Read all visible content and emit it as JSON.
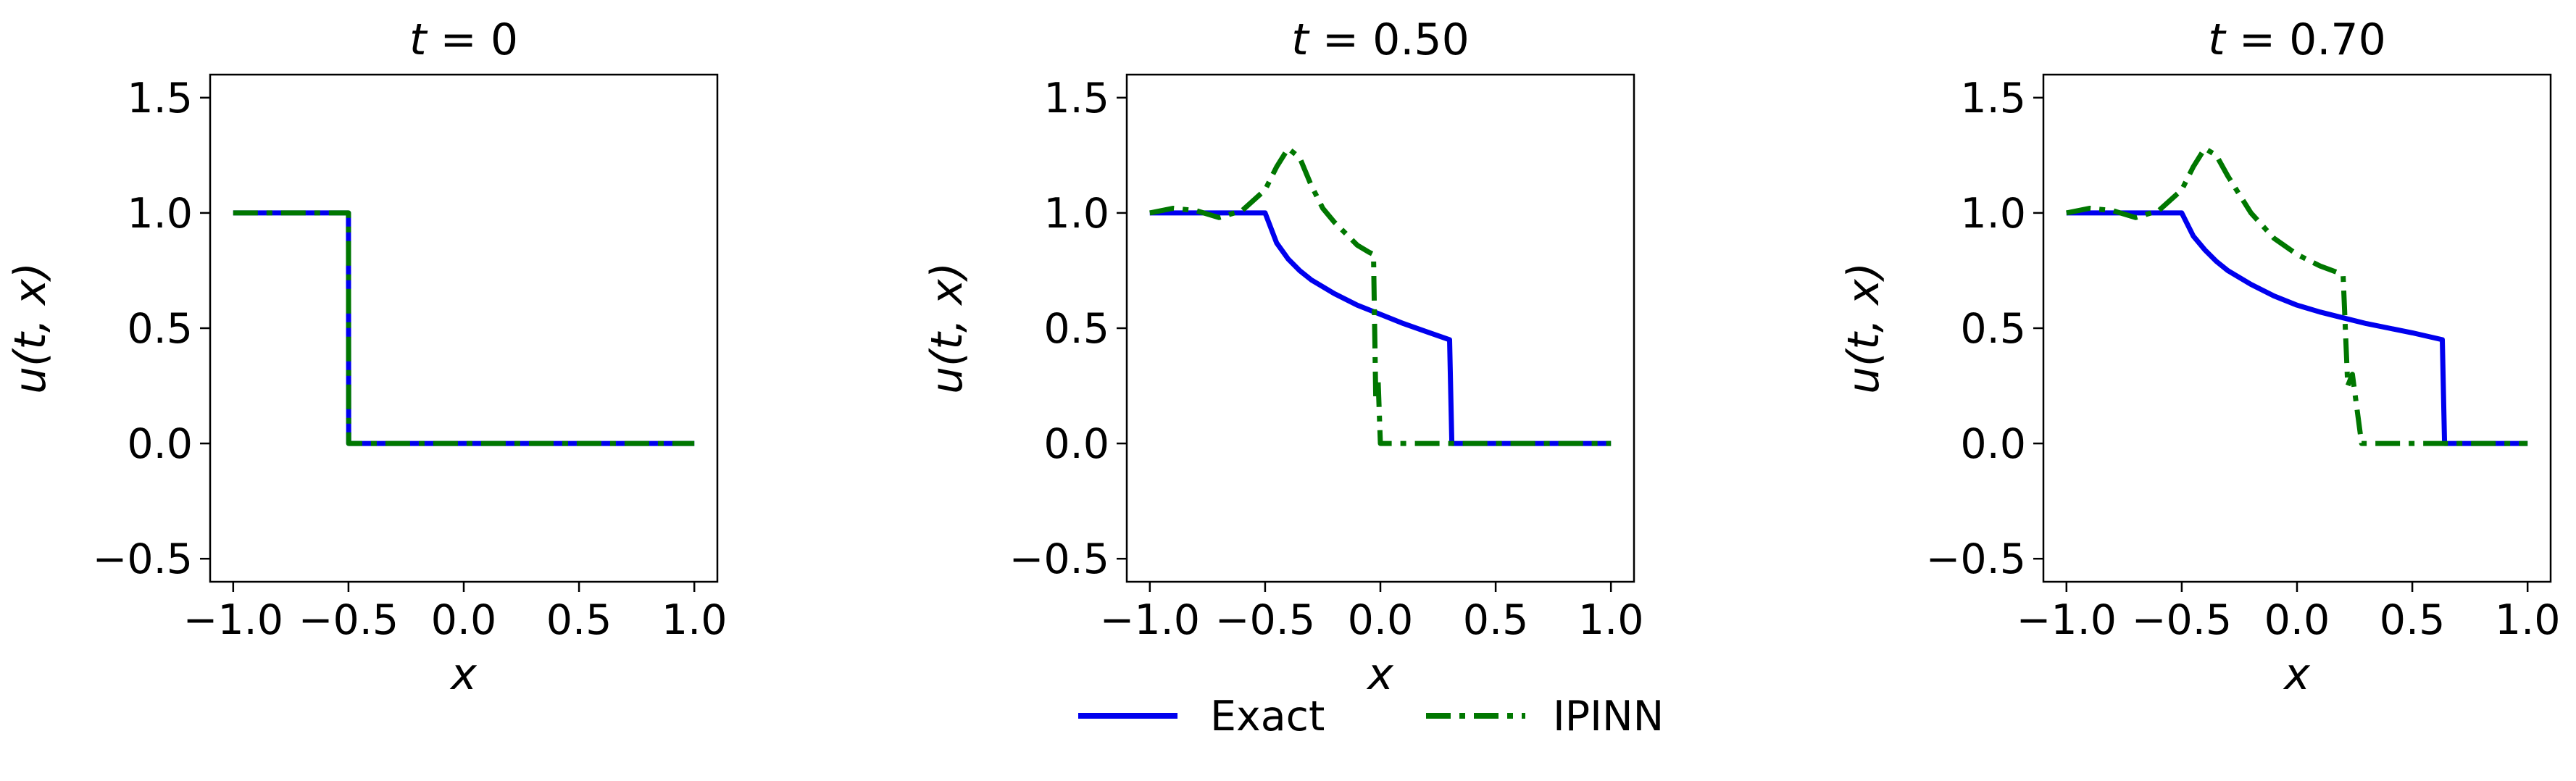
{
  "chart_data": [
    {
      "type": "line",
      "title": "t = 0",
      "xlabel": "x",
      "ylabel": "u(t, x)",
      "xlim": [
        -1.1,
        1.1
      ],
      "ylim": [
        -0.6,
        1.6
      ],
      "xticks": [
        "−1.0",
        "−0.5",
        "0.0",
        "0.5",
        "1.0"
      ],
      "xtick_values": [
        -1.0,
        -0.5,
        0.0,
        0.5,
        1.0
      ],
      "yticks": [
        "−0.5",
        "0.0",
        "0.5",
        "1.0",
        "1.5"
      ],
      "ytick_values": [
        -0.5,
        0.0,
        0.5,
        1.0,
        1.5
      ],
      "series": [
        {
          "name": "Exact",
          "color": "#0000ee",
          "style": "solid",
          "x": [
            -1.0,
            -0.5,
            -0.499,
            1.0
          ],
          "y": [
            1.0,
            1.0,
            0.0,
            0.0
          ]
        },
        {
          "name": "IPINN",
          "color": "#007700",
          "style": "dashdot",
          "x": [
            -1.0,
            -0.5,
            -0.499,
            1.0
          ],
          "y": [
            1.0,
            1.0,
            0.0,
            0.0
          ]
        }
      ]
    },
    {
      "type": "line",
      "title": "t = 0.50",
      "xlabel": "x",
      "ylabel": "u(t, x)",
      "xlim": [
        -1.1,
        1.1
      ],
      "ylim": [
        -0.6,
        1.6
      ],
      "xticks": [
        "−1.0",
        "−0.5",
        "0.0",
        "0.5",
        "1.0"
      ],
      "xtick_values": [
        -1.0,
        -0.5,
        0.0,
        0.5,
        1.0
      ],
      "yticks": [
        "−0.5",
        "0.0",
        "0.5",
        "1.0",
        "1.5"
      ],
      "ytick_values": [
        -0.5,
        0.0,
        0.5,
        1.0,
        1.5
      ],
      "series": [
        {
          "name": "Exact",
          "color": "#0000ee",
          "style": "solid",
          "x": [
            -1.0,
            -0.5,
            -0.45,
            -0.4,
            -0.35,
            -0.3,
            -0.2,
            -0.1,
            0.0,
            0.1,
            0.2,
            0.3,
            0.31,
            1.0
          ],
          "y": [
            1.0,
            1.0,
            0.87,
            0.8,
            0.75,
            0.71,
            0.65,
            0.6,
            0.56,
            0.52,
            0.485,
            0.45,
            0.0,
            0.0
          ]
        },
        {
          "name": "IPINN",
          "color": "#007700",
          "style": "dashdot",
          "x": [
            -1.0,
            -0.9,
            -0.8,
            -0.7,
            -0.6,
            -0.5,
            -0.45,
            -0.4,
            -0.35,
            -0.3,
            -0.25,
            -0.2,
            -0.15,
            -0.1,
            -0.05,
            -0.03,
            -0.02,
            -0.01,
            0.0,
            0.05,
            0.2,
            1.0
          ],
          "y": [
            1.0,
            1.02,
            1.01,
            0.98,
            1.01,
            1.1,
            1.2,
            1.28,
            1.24,
            1.12,
            1.02,
            0.96,
            0.91,
            0.86,
            0.83,
            0.82,
            0.2,
            0.28,
            0.0,
            0.0,
            0.0,
            0.0
          ]
        }
      ]
    },
    {
      "type": "line",
      "title": "t = 0.70",
      "xlabel": "x",
      "ylabel": "u(t, x)",
      "xlim": [
        -1.1,
        1.1
      ],
      "ylim": [
        -0.6,
        1.6
      ],
      "xticks": [
        "−1.0",
        "−0.5",
        "0.0",
        "0.5",
        "1.0"
      ],
      "xtick_values": [
        -1.0,
        -0.5,
        0.0,
        0.5,
        1.0
      ],
      "yticks": [
        "−0.5",
        "0.0",
        "0.5",
        "1.0",
        "1.5"
      ],
      "ytick_values": [
        -0.5,
        0.0,
        0.5,
        1.0,
        1.5
      ],
      "series": [
        {
          "name": "Exact",
          "color": "#0000ee",
          "style": "solid",
          "x": [
            -1.0,
            -0.5,
            -0.45,
            -0.4,
            -0.35,
            -0.3,
            -0.2,
            -0.1,
            0.0,
            0.1,
            0.2,
            0.3,
            0.4,
            0.5,
            0.63,
            0.64,
            1.0
          ],
          "y": [
            1.0,
            1.0,
            0.9,
            0.84,
            0.79,
            0.75,
            0.69,
            0.64,
            0.6,
            0.57,
            0.545,
            0.52,
            0.5,
            0.48,
            0.45,
            0.0,
            0.0
          ]
        },
        {
          "name": "IPINN",
          "color": "#007700",
          "style": "dashdot",
          "x": [
            -1.0,
            -0.9,
            -0.8,
            -0.7,
            -0.6,
            -0.5,
            -0.45,
            -0.4,
            -0.35,
            -0.3,
            -0.2,
            -0.1,
            0.0,
            0.1,
            0.18,
            0.2,
            0.22,
            0.24,
            0.28,
            0.3,
            0.5,
            1.0
          ],
          "y": [
            1.0,
            1.02,
            1.01,
            0.98,
            1.01,
            1.1,
            1.2,
            1.28,
            1.25,
            1.16,
            1.0,
            0.89,
            0.82,
            0.77,
            0.74,
            0.73,
            0.25,
            0.3,
            0.0,
            0.0,
            0.0,
            0.0
          ]
        }
      ]
    }
  ],
  "legend": {
    "placement": "bottom-center",
    "entries": [
      {
        "label": "Exact",
        "color": "#0000ee",
        "style": "solid"
      },
      {
        "label": "IPINN",
        "color": "#007700",
        "style": "dashdot"
      }
    ]
  }
}
